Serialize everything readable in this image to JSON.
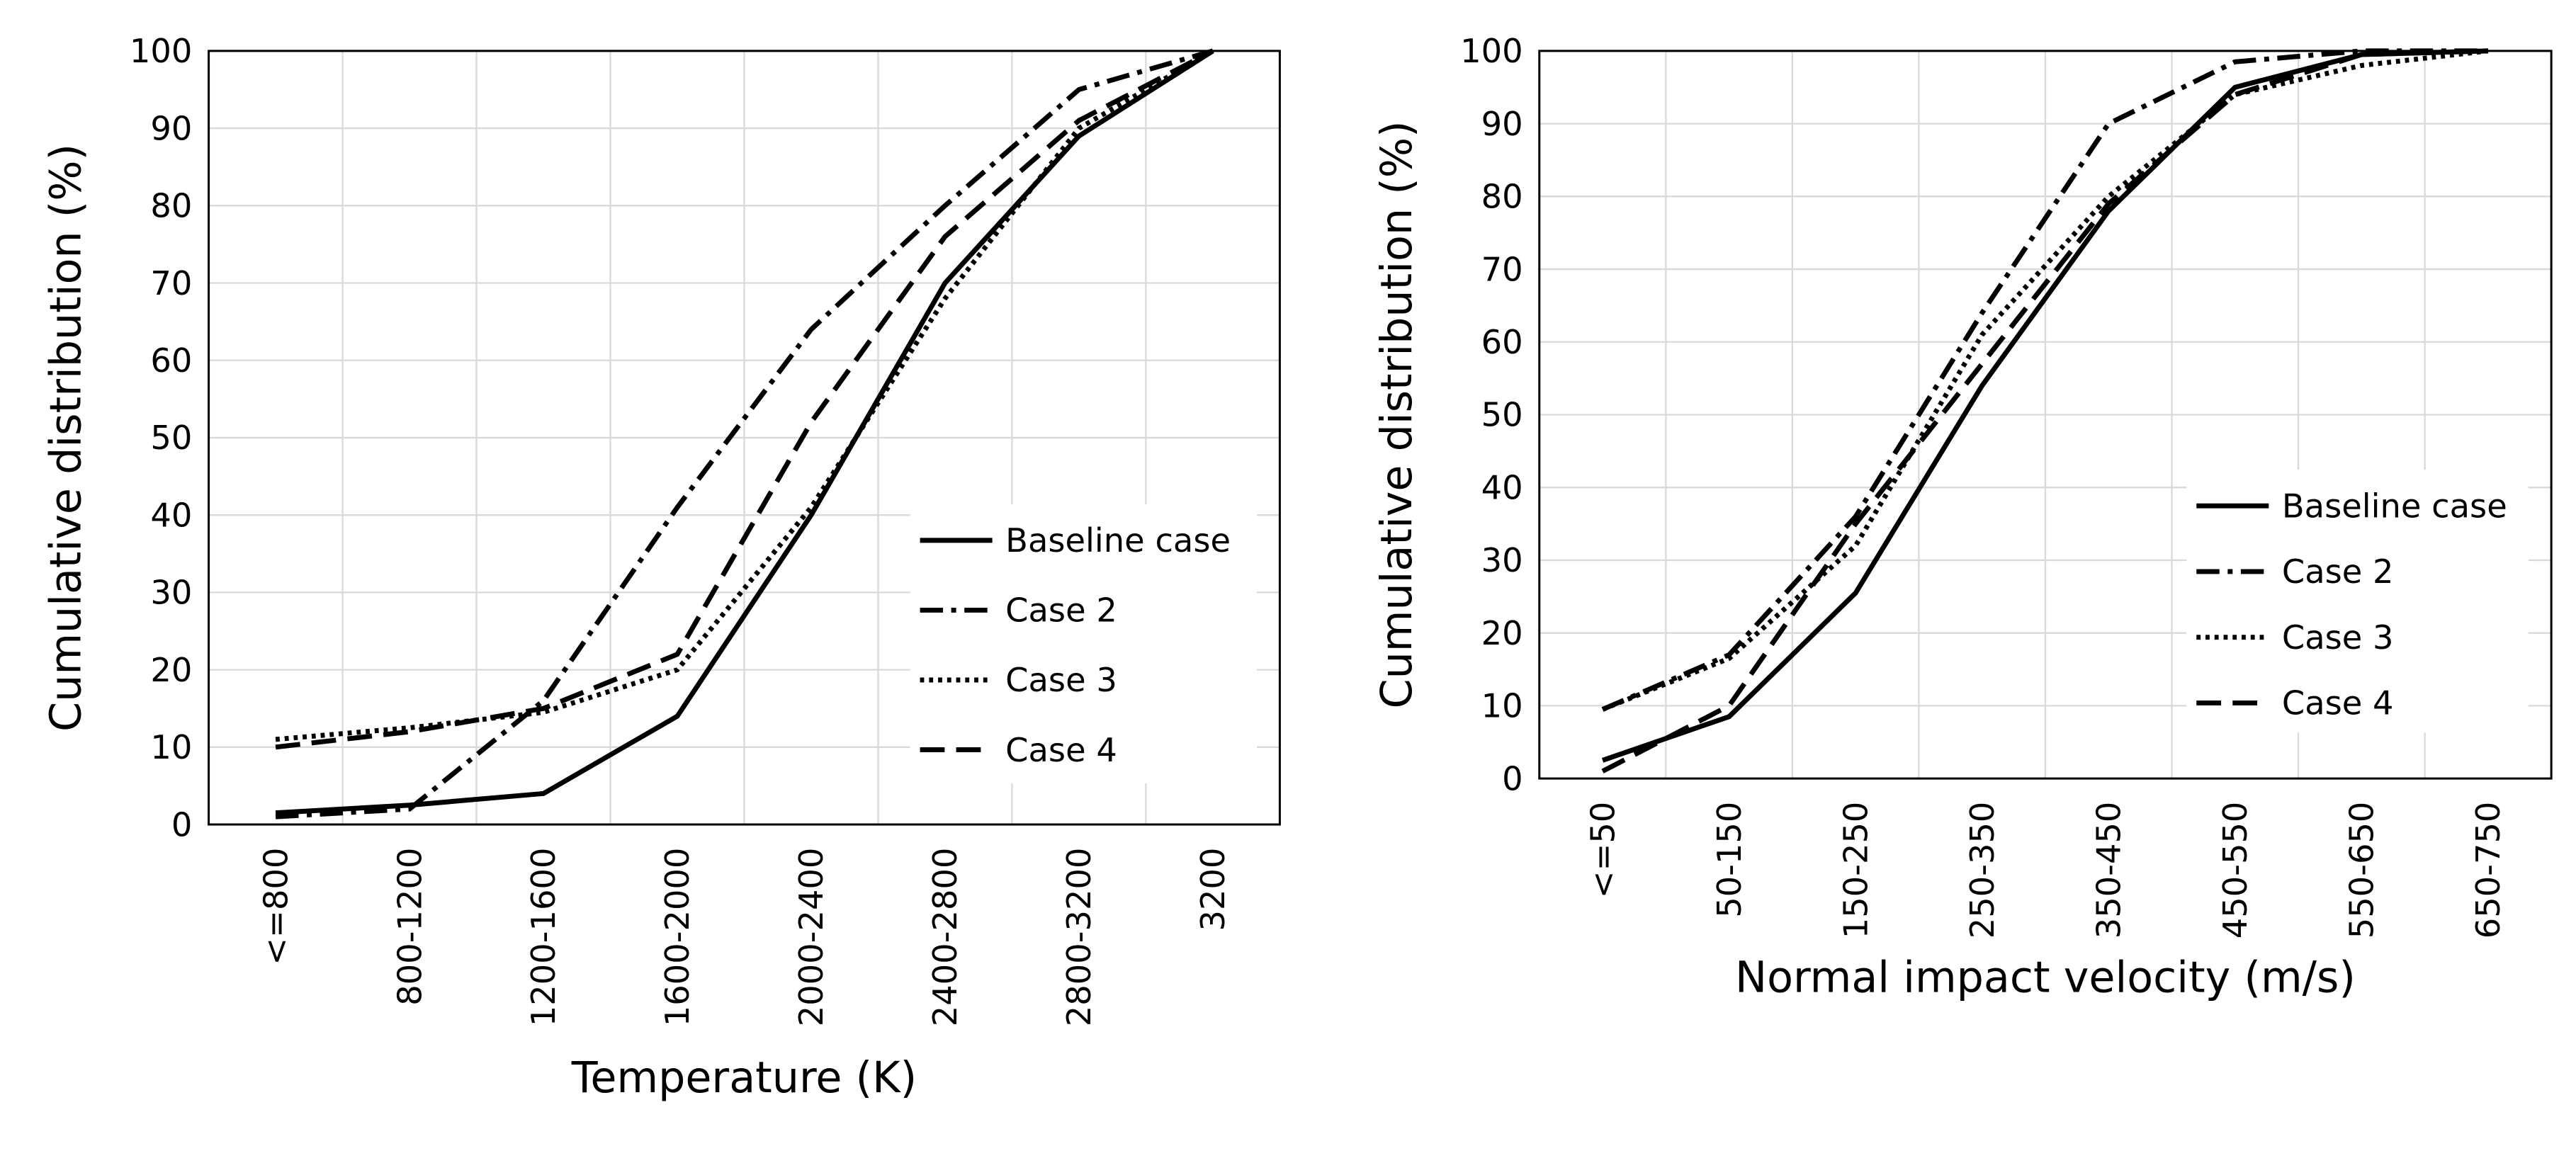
{
  "chart_data": [
    {
      "type": "line",
      "x_label": "Temperature (K)",
      "y_label": "Cumulative distribution (%)",
      "categories": [
        "<=800",
        "800-1200",
        "1200-1600",
        "1600-2000",
        "2000-2400",
        "2400-2800",
        "2800-3200",
        "3200"
      ],
      "series": [
        {
          "name": "Baseline case",
          "color": "#000000",
          "style": "solid",
          "values": [
            1.5,
            2.5,
            4,
            14,
            40,
            70,
            89,
            100
          ]
        },
        {
          "name": "Case 2",
          "color": "#000000",
          "style": "dashdot",
          "values": [
            1,
            2,
            16,
            41,
            64,
            80,
            95,
            100
          ]
        },
        {
          "name": "Case 3",
          "color": "#000000",
          "style": "dotted",
          "values": [
            11,
            12.5,
            14.5,
            20,
            41,
            68,
            90,
            100
          ]
        },
        {
          "name": "Case 4",
          "color": "#000000",
          "style": "dashed",
          "values": [
            10,
            12,
            15,
            22,
            52,
            76,
            91,
            100
          ]
        }
      ],
      "ylim": [
        0,
        100
      ],
      "yticks": [
        0,
        10,
        20,
        30,
        40,
        50,
        60,
        70,
        80,
        90,
        100
      ],
      "grid": true,
      "legend": "right"
    },
    {
      "type": "line",
      "x_label": "Normal impact velocity (m/s)",
      "y_label": "Cumulative distribution (%)",
      "categories": [
        "<=50",
        "50-150",
        "150-250",
        "250-350",
        "350-450",
        "450-550",
        "550-650",
        "650-750"
      ],
      "series": [
        {
          "name": "Baseline case",
          "color": "#000000",
          "style": "solid",
          "values": [
            2.5,
            8.5,
            25.5,
            54,
            78,
            95,
            99.5,
            100
          ]
        },
        {
          "name": "Case 2",
          "color": "#000000",
          "style": "dashdot",
          "values": [
            9.5,
            17,
            36,
            64,
            90,
            98.5,
            100,
            100
          ]
        },
        {
          "name": "Case 3",
          "color": "#000000",
          "style": "dotted",
          "values": [
            9.5,
            16.5,
            32,
            61,
            80,
            94,
            98,
            100
          ]
        },
        {
          "name": "Case 4",
          "color": "#000000",
          "style": "dashed",
          "values": [
            1,
            10,
            35,
            57,
            79,
            94,
            99.5,
            100
          ]
        }
      ],
      "ylim": [
        0,
        100
      ],
      "yticks": [
        0,
        10,
        20,
        30,
        40,
        50,
        60,
        70,
        80,
        90,
        100
      ],
      "grid": true,
      "legend": "right"
    }
  ]
}
